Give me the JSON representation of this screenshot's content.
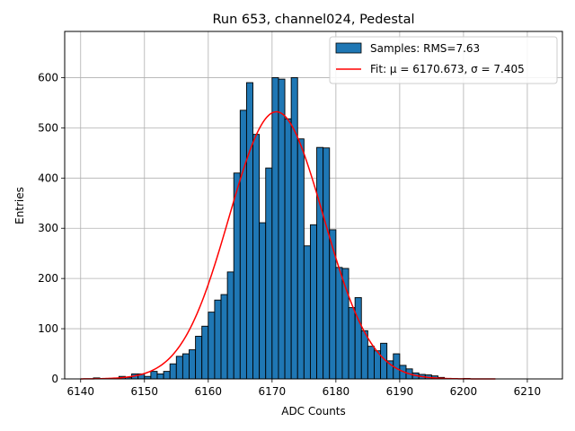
{
  "chart_data": {
    "type": "bar",
    "title": "Run 653, channel024, Pedestal",
    "xlabel": "ADC Counts",
    "ylabel": "Entries",
    "xlim": [
      6137.5,
      6215.5
    ],
    "ylim": [
      0,
      692
    ],
    "xticks": [
      6140,
      6150,
      6160,
      6170,
      6180,
      6190,
      6200,
      6210
    ],
    "yticks": [
      0,
      100,
      200,
      300,
      400,
      500,
      600
    ],
    "grid": true,
    "legend_position": "top-right",
    "colors": {
      "bars": "#1f77b4",
      "bar_edge": "#000000",
      "fit": "#ff0000",
      "grid": "#b0b0b0"
    },
    "histogram": {
      "name": "Samples: RMS=7.63",
      "bin_start": 6140,
      "bin_width": 1,
      "counts": [
        0,
        0,
        2,
        0,
        0,
        0,
        5,
        3,
        10,
        10,
        5,
        15,
        10,
        15,
        30,
        45,
        50,
        58,
        85,
        105,
        133,
        157,
        168,
        213,
        410,
        535,
        590,
        487,
        311,
        420,
        600,
        597,
        518,
        600,
        478,
        265,
        307,
        461,
        460,
        297,
        222,
        220,
        142,
        162,
        96,
        65,
        56,
        71,
        36,
        50,
        27,
        20,
        12,
        9,
        8,
        6,
        3,
        1,
        1,
        0,
        1,
        0,
        0,
        0,
        0,
        0,
        0,
        0,
        0,
        0,
        0,
        0
      ]
    },
    "fit": {
      "name": "Fit: μ = 6170.673, σ = 7.405",
      "mu": 6170.673,
      "sigma": 7.405,
      "amplitude": 532,
      "x_range": [
        6140,
        6205
      ]
    }
  }
}
